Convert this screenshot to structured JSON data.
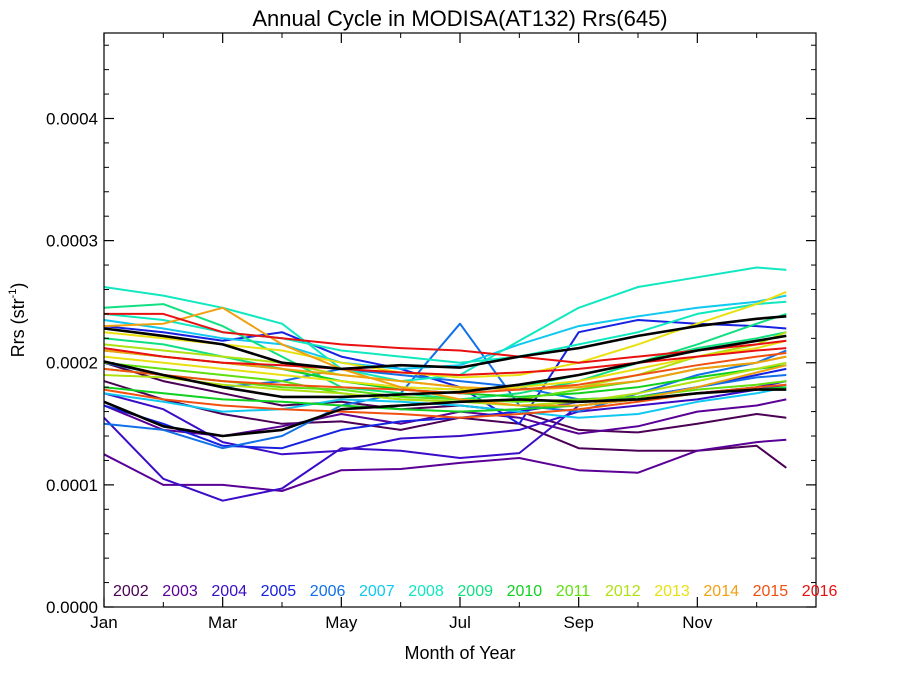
{
  "chart_data": {
    "type": "line",
    "title": "Annual Cycle in MODISA(AT132) Rrs(645)",
    "xlabel": "Month of Year",
    "ylabel_main": "Rrs (str",
    "ylabel_sup": "-1",
    "ylabel_end": ")",
    "xlim": [
      0,
      12
    ],
    "ylim": [
      0,
      0.00047
    ],
    "x_ticks": [
      {
        "value": 0,
        "label": "Jan"
      },
      {
        "value": 2,
        "label": "Mar"
      },
      {
        "value": 4,
        "label": "May"
      },
      {
        "value": 6,
        "label": "Jul"
      },
      {
        "value": 8,
        "label": "Sep"
      },
      {
        "value": 10,
        "label": "Nov"
      }
    ],
    "y_ticks": [
      {
        "value": 0.0,
        "label": "0.0000"
      },
      {
        "value": 0.0001,
        "label": "0.0001"
      },
      {
        "value": 0.0002,
        "label": "0.0002"
      },
      {
        "value": 0.0003,
        "label": "0.0003"
      },
      {
        "value": 0.0004,
        "label": "0.0004"
      }
    ],
    "grid": false,
    "legend_placement": "bottom",
    "x": [
      0,
      1,
      2,
      3,
      4,
      5,
      6,
      7,
      8,
      9,
      10,
      11,
      11.5
    ],
    "series": [
      {
        "name": "2002",
        "color": "#4b0055",
        "lines": [
          [
            0.000185,
            0.00017,
            0.000158,
            0.00015,
            0.000152,
            0.000145,
            0.000155,
            0.00015,
            0.00013,
            0.000128,
            0.000128,
            0.000132,
            0.000114
          ],
          [
            0.0002,
            0.000185,
            0.000175,
            0.000165,
            0.000168,
            0.000162,
            0.000165,
            0.00016,
            0.000145,
            0.000143,
            0.00015,
            0.000158,
            0.000155
          ]
        ]
      },
      {
        "name": "2003",
        "color": "#5a0096",
        "lines": [
          [
            0.000125,
            0.0001,
            0.0001,
            9.5e-05,
            0.000112,
            0.000113,
            0.000118,
            0.000122,
            0.000112,
            0.00011,
            0.000128,
            0.000135,
            0.000137
          ],
          [
            0.000165,
            0.000145,
            0.00014,
            0.000148,
            0.000158,
            0.00015,
            0.00016,
            0.000155,
            0.000142,
            0.000148,
            0.00016,
            0.000165,
            0.00017
          ]
        ]
      },
      {
        "name": "2004",
        "color": "#3a0cc8",
        "lines": [
          [
            0.000155,
            0.000105,
            8.7e-05,
            9.7e-05,
            0.00013,
            0.000128,
            0.000122,
            0.000126,
            0.000165,
            0.00017,
            0.000175,
            0.00018,
            0.000185
          ],
          [
            0.000175,
            0.000162,
            0.000135,
            0.000125,
            0.000128,
            0.000138,
            0.00014,
            0.000145,
            0.00016,
            0.000165,
            0.00017,
            0.000178,
            0.000182
          ]
        ]
      },
      {
        "name": "2005",
        "color": "#1622e0",
        "lines": [
          [
            0.00023,
            0.000225,
            0.000218,
            0.000225,
            0.000205,
            0.000195,
            0.00018,
            0.00015,
            0.000225,
            0.000235,
            0.000232,
            0.00023,
            0.000228
          ],
          [
            0.000165,
            0.00015,
            0.000132,
            0.00013,
            0.000145,
            0.000152,
            0.000155,
            0.00016,
            0.000168,
            0.000172,
            0.00018,
            0.00019,
            0.000195
          ]
        ]
      },
      {
        "name": "2006",
        "color": "#1070e8",
        "lines": [
          [
            0.00015,
            0.000145,
            0.00013,
            0.00014,
            0.000165,
            0.000175,
            0.000232,
            0.000165,
            0.00016,
            0.000175,
            0.00019,
            0.0002,
            0.00021
          ],
          [
            0.0002,
            0.00019,
            0.00018,
            0.000185,
            0.000195,
            0.00019,
            0.000185,
            0.00018,
            0.00017,
            0.000172,
            0.00018,
            0.000188,
            0.00019
          ]
        ]
      },
      {
        "name": "2007",
        "color": "#10c8f0",
        "lines": [
          [
            0.000235,
            0.000228,
            0.00022,
            0.000215,
            0.0002,
            0.000195,
            0.000198,
            0.000215,
            0.00023,
            0.000238,
            0.000245,
            0.00025,
            0.000255
          ],
          [
            0.000175,
            0.000168,
            0.00016,
            0.000162,
            0.00017,
            0.000168,
            0.000165,
            0.00016,
            0.000155,
            0.000158,
            0.000168,
            0.000175,
            0.00018
          ]
        ]
      },
      {
        "name": "2008",
        "color": "#10e8c0",
        "lines": [
          [
            0.000262,
            0.000255,
            0.000245,
            0.000232,
            0.000195,
            0.000185,
            0.00019,
            0.000218,
            0.000245,
            0.000262,
            0.00027,
            0.000278,
            0.000276
          ],
          [
            0.00024,
            0.000235,
            0.000225,
            0.00022,
            0.00021,
            0.000205,
            0.0002,
            0.000205,
            0.000215,
            0.000225,
            0.00024,
            0.000248,
            0.00025
          ]
        ]
      },
      {
        "name": "2009",
        "color": "#10e080",
        "lines": [
          [
            0.000245,
            0.000248,
            0.00023,
            0.000205,
            0.00018,
            0.000175,
            0.00017,
            0.000175,
            0.000185,
            0.0002,
            0.000215,
            0.000232,
            0.00024
          ],
          [
            0.00022,
            0.000215,
            0.000205,
            0.000195,
            0.000185,
            0.00018,
            0.000178,
            0.00018,
            0.00019,
            0.0002,
            0.000212,
            0.00022,
            0.000225
          ]
        ]
      },
      {
        "name": "2010",
        "color": "#10d020",
        "lines": [
          [
            0.00021,
            0.000205,
            0.0002,
            0.000195,
            0.000185,
            0.000178,
            0.000175,
            0.000172,
            0.000175,
            0.00018,
            0.000188,
            0.000195,
            0.000198
          ],
          [
            0.00018,
            0.000175,
            0.00017,
            0.000168,
            0.000165,
            0.000162,
            0.00016,
            0.000162,
            0.000165,
            0.00017,
            0.000175,
            0.000178,
            0.00018
          ]
        ]
      },
      {
        "name": "2011",
        "color": "#60e010",
        "lines": [
          [
            0.0002,
            0.000195,
            0.00019,
            0.000185,
            0.000175,
            0.00017,
            0.000168,
            0.00017,
            0.000178,
            0.000185,
            0.000195,
            0.0002,
            0.000205
          ],
          [
            0.000195,
            0.00019,
            0.000185,
            0.00018,
            0.000178,
            0.000172,
            0.00017,
            0.000168,
            0.00017,
            0.000172,
            0.000178,
            0.000182,
            0.000185
          ]
        ]
      },
      {
        "name": "2012",
        "color": "#b0e010",
        "lines": [
          [
            0.000215,
            0.00021,
            0.000205,
            0.0002,
            0.00019,
            0.000185,
            0.00018,
            0.000178,
            0.00018,
            0.00019,
            0.000205,
            0.000215,
            0.000225
          ],
          [
            0.00019,
            0.000188,
            0.000182,
            0.000178,
            0.000175,
            0.00017,
            0.000168,
            0.000165,
            0.000168,
            0.000175,
            0.000185,
            0.000195,
            0.0002
          ]
        ]
      },
      {
        "name": "2013",
        "color": "#e8e010",
        "lines": [
          [
            0.000225,
            0.00022,
            0.000215,
            0.00021,
            0.0002,
            0.000192,
            0.000188,
            0.00019,
            0.0002,
            0.000215,
            0.000232,
            0.000248,
            0.000258
          ],
          [
            0.000205,
            0.0002,
            0.000195,
            0.00019,
            0.000185,
            0.00018,
            0.000178,
            0.00018,
            0.000185,
            0.000195,
            0.000205,
            0.000212,
            0.000218
          ]
        ]
      },
      {
        "name": "2014",
        "color": "#f0a010",
        "lines": [
          [
            0.00023,
            0.000232,
            0.000245,
            0.000215,
            0.000195,
            0.00018,
            0.00017,
            0.000165,
            0.000165,
            0.00017,
            0.00018,
            0.000192,
            0.000198
          ],
          [
            0.00021,
            0.000205,
            0.0002,
            0.000195,
            0.00019,
            0.000185,
            0.00018,
            0.000178,
            0.00018,
            0.000185,
            0.000195,
            0.0002,
            0.000205
          ]
        ]
      },
      {
        "name": "2015",
        "color": "#f05010",
        "lines": [
          [
            0.000178,
            0.00017,
            0.000165,
            0.000162,
            0.00016,
            0.000158,
            0.000155,
            0.000158,
            0.000162,
            0.000168,
            0.000175,
            0.00018,
            0.000182
          ],
          [
            0.000195,
            0.00019,
            0.000185,
            0.000182,
            0.00018,
            0.000178,
            0.000175,
            0.000178,
            0.000182,
            0.00019,
            0.000198,
            0.000205,
            0.000208
          ]
        ]
      },
      {
        "name": "2016",
        "color": "#e81010",
        "lines": [
          [
            0.00024,
            0.00024,
            0.000225,
            0.00022,
            0.000215,
            0.000212,
            0.00021,
            0.000205,
            0.0002,
            0.000205,
            0.00021,
            0.000215,
            0.000218
          ],
          [
            0.000212,
            0.000205,
            0.0002,
            0.000198,
            0.000195,
            0.000192,
            0.00019,
            0.000192,
            0.000195,
            0.0002,
            0.000205,
            0.00021,
            0.000212
          ]
        ]
      }
    ],
    "reference_lines": {
      "color": "#000000",
      "lines": [
        [
          0.000228,
          0.000222,
          0.000215,
          0.0002,
          0.000195,
          0.000198,
          0.000196,
          0.000205,
          0.000212,
          0.000222,
          0.00023,
          0.000236,
          0.000238
        ],
        [
          0.000201,
          0.00019,
          0.00018,
          0.000172,
          0.000172,
          0.000174,
          0.000176,
          0.000182,
          0.00019,
          0.0002,
          0.00021,
          0.000218,
          0.000222
        ],
        [
          0.000168,
          0.000148,
          0.00014,
          0.000145,
          0.000162,
          0.000165,
          0.000168,
          0.00017,
          0.000168,
          0.00017,
          0.000175,
          0.000178,
          0.000178
        ]
      ]
    }
  }
}
